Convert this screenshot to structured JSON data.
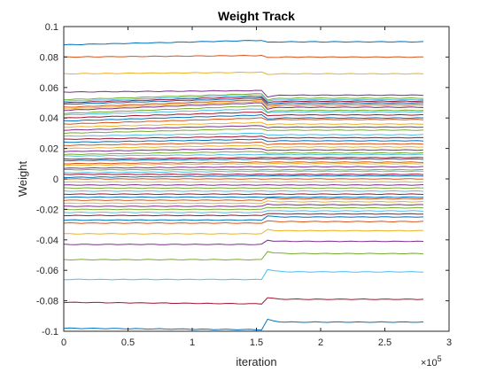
{
  "chart_data": {
    "type": "line",
    "title": "Weight Track",
    "xlabel": "iteration",
    "ylabel": "Weight",
    "x_exponent_label": "×10",
    "x_exponent_power": "5",
    "xlim": [
      0,
      3
    ],
    "ylim": [
      -0.1,
      0.1
    ],
    "x_ticks": [
      0,
      0.5,
      1,
      1.5,
      2,
      2.5,
      3
    ],
    "x_tick_labels": [
      "0",
      "0.5",
      "1",
      "1.5",
      "2",
      "2.5",
      "3"
    ],
    "y_ticks": [
      -0.1,
      -0.08,
      -0.06,
      -0.04,
      -0.02,
      0,
      0.02,
      0.04,
      0.06,
      0.08,
      0.1
    ],
    "y_tick_labels": [
      "-0.1",
      "-0.08",
      "-0.06",
      "-0.04",
      "-0.02",
      "0",
      "0.02",
      "0.04",
      "0.06",
      "0.08",
      "0.1"
    ],
    "x_data_end": 2.8,
    "event_x": 1.55,
    "grid": false,
    "legend": "none",
    "colors": [
      "#0072BD",
      "#D95319",
      "#EDB120",
      "#7E2F8E",
      "#77AC30",
      "#4DBEEE",
      "#A2142F"
    ],
    "series": [
      {
        "start": 0.088,
        "pre_event": 0.091,
        "end": 0.09
      },
      {
        "start": 0.08,
        "pre_event": 0.081,
        "end": 0.08
      },
      {
        "start": 0.069,
        "pre_event": 0.07,
        "end": 0.069
      },
      {
        "start": 0.057,
        "pre_event": 0.058,
        "end": 0.055
      },
      {
        "start": 0.052,
        "pre_event": 0.056,
        "end": 0.053
      },
      {
        "start": 0.051,
        "pre_event": 0.055,
        "end": 0.052
      },
      {
        "start": 0.05,
        "pre_event": 0.054,
        "end": 0.051
      },
      {
        "start": 0.049,
        "pre_event": 0.053,
        "end": 0.05
      },
      {
        "start": 0.047,
        "pre_event": 0.052,
        "end": 0.049
      },
      {
        "start": 0.046,
        "pre_event": 0.051,
        "end": 0.048
      },
      {
        "start": 0.045,
        "pre_event": 0.05,
        "end": 0.047
      },
      {
        "start": 0.043,
        "pre_event": 0.048,
        "end": 0.045
      },
      {
        "start": 0.042,
        "pre_event": 0.046,
        "end": 0.044
      },
      {
        "start": 0.04,
        "pre_event": 0.044,
        "end": 0.042
      },
      {
        "start": 0.038,
        "pre_event": 0.042,
        "end": 0.04
      },
      {
        "start": 0.036,
        "pre_event": 0.04,
        "end": 0.039
      },
      {
        "start": 0.034,
        "pre_event": 0.037,
        "end": 0.036
      },
      {
        "start": 0.032,
        "pre_event": 0.035,
        "end": 0.034
      },
      {
        "start": 0.03,
        "pre_event": 0.033,
        "end": 0.032
      },
      {
        "start": 0.028,
        "pre_event": 0.03,
        "end": 0.029
      },
      {
        "start": 0.026,
        "pre_event": 0.028,
        "end": 0.027
      },
      {
        "start": 0.024,
        "pre_event": 0.026,
        "end": 0.025
      },
      {
        "start": 0.022,
        "pre_event": 0.024,
        "end": 0.023
      },
      {
        "start": 0.02,
        "pre_event": 0.022,
        "end": 0.021
      },
      {
        "start": 0.018,
        "pre_event": 0.02,
        "end": 0.019
      },
      {
        "start": 0.016,
        "pre_event": 0.018,
        "end": 0.017
      },
      {
        "start": 0.015,
        "pre_event": 0.016,
        "end": 0.016
      },
      {
        "start": 0.013,
        "pre_event": 0.014,
        "end": 0.014
      },
      {
        "start": 0.012,
        "pre_event": 0.013,
        "end": 0.013
      },
      {
        "start": 0.01,
        "pre_event": 0.011,
        "end": 0.011
      },
      {
        "start": 0.009,
        "pre_event": 0.01,
        "end": 0.01
      },
      {
        "start": 0.007,
        "pre_event": 0.008,
        "end": 0.008
      },
      {
        "start": 0.006,
        "pre_event": 0.006,
        "end": 0.006
      },
      {
        "start": 0.004,
        "pre_event": 0.005,
        "end": 0.005
      },
      {
        "start": 0.003,
        "pre_event": 0.003,
        "end": 0.003
      },
      {
        "start": 0.001,
        "pre_event": 0.002,
        "end": 0.002
      },
      {
        "start": 0.0,
        "pre_event": 0.0,
        "end": 0.0
      },
      {
        "start": -0.002,
        "pre_event": -0.002,
        "end": -0.002
      },
      {
        "start": -0.004,
        "pre_event": -0.004,
        "end": -0.004
      },
      {
        "start": -0.006,
        "pre_event": -0.006,
        "end": -0.006
      },
      {
        "start": -0.008,
        "pre_event": -0.008,
        "end": -0.008
      },
      {
        "start": -0.01,
        "pre_event": -0.01,
        "end": -0.01
      },
      {
        "start": -0.012,
        "pre_event": -0.012,
        "end": -0.012
      },
      {
        "start": -0.014,
        "pre_event": -0.014,
        "end": -0.013
      },
      {
        "start": -0.016,
        "pre_event": -0.016,
        "end": -0.015
      },
      {
        "start": -0.018,
        "pre_event": -0.018,
        "end": -0.017
      },
      {
        "start": -0.02,
        "pre_event": -0.02,
        "end": -0.019
      },
      {
        "start": -0.022,
        "pre_event": -0.022,
        "end": -0.021
      },
      {
        "start": -0.024,
        "pre_event": -0.024,
        "end": -0.023
      },
      {
        "start": -0.027,
        "pre_event": -0.027,
        "end": -0.025
      },
      {
        "start": -0.029,
        "pre_event": -0.029,
        "end": -0.028
      },
      {
        "start": -0.036,
        "pre_event": -0.036,
        "end": -0.034
      },
      {
        "start": -0.043,
        "pre_event": -0.043,
        "end": -0.041
      },
      {
        "start": -0.053,
        "pre_event": -0.053,
        "end": -0.049
      },
      {
        "start": -0.066,
        "pre_event": -0.066,
        "end": -0.061
      },
      {
        "start": -0.081,
        "pre_event": -0.082,
        "end": -0.079
      },
      {
        "start": -0.098,
        "pre_event": -0.099,
        "end": -0.094
      }
    ]
  }
}
